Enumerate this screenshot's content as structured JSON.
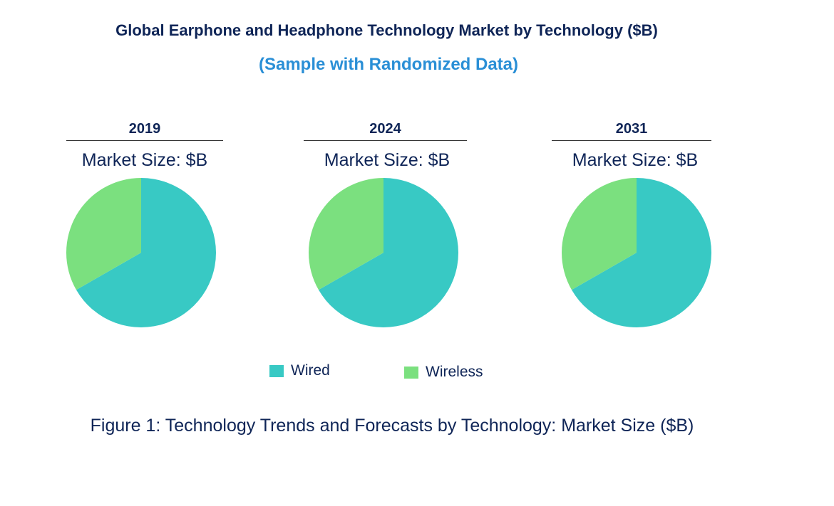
{
  "title": "Global Earphone and Headphone Technology Market by Technology ($B)",
  "subtitle": "(Sample with Randomized Data)",
  "caption": "Figure 1: Technology Trends and Forecasts by Technology: Market Size ($B)",
  "chart_data": [
    {
      "type": "pie",
      "title": "2019",
      "subtitle": "Market Size: $B",
      "labels": [
        "Wired",
        "Wireless"
      ],
      "values": [
        66.7,
        33.3
      ]
    },
    {
      "type": "pie",
      "title": "2024",
      "subtitle": "Market Size: $B",
      "labels": [
        "Wired",
        "Wireless"
      ],
      "values": [
        66.7,
        33.3
      ]
    },
    {
      "type": "pie",
      "title": "2031",
      "subtitle": "Market Size: $B",
      "labels": [
        "Wired",
        "Wireless"
      ],
      "values": [
        66.7,
        33.3
      ]
    }
  ],
  "legend": {
    "placement": "bottom",
    "items": [
      {
        "label": "Wired",
        "color": "#38C9C4"
      },
      {
        "label": "Wireless",
        "color": "#7BE07F"
      }
    ]
  }
}
